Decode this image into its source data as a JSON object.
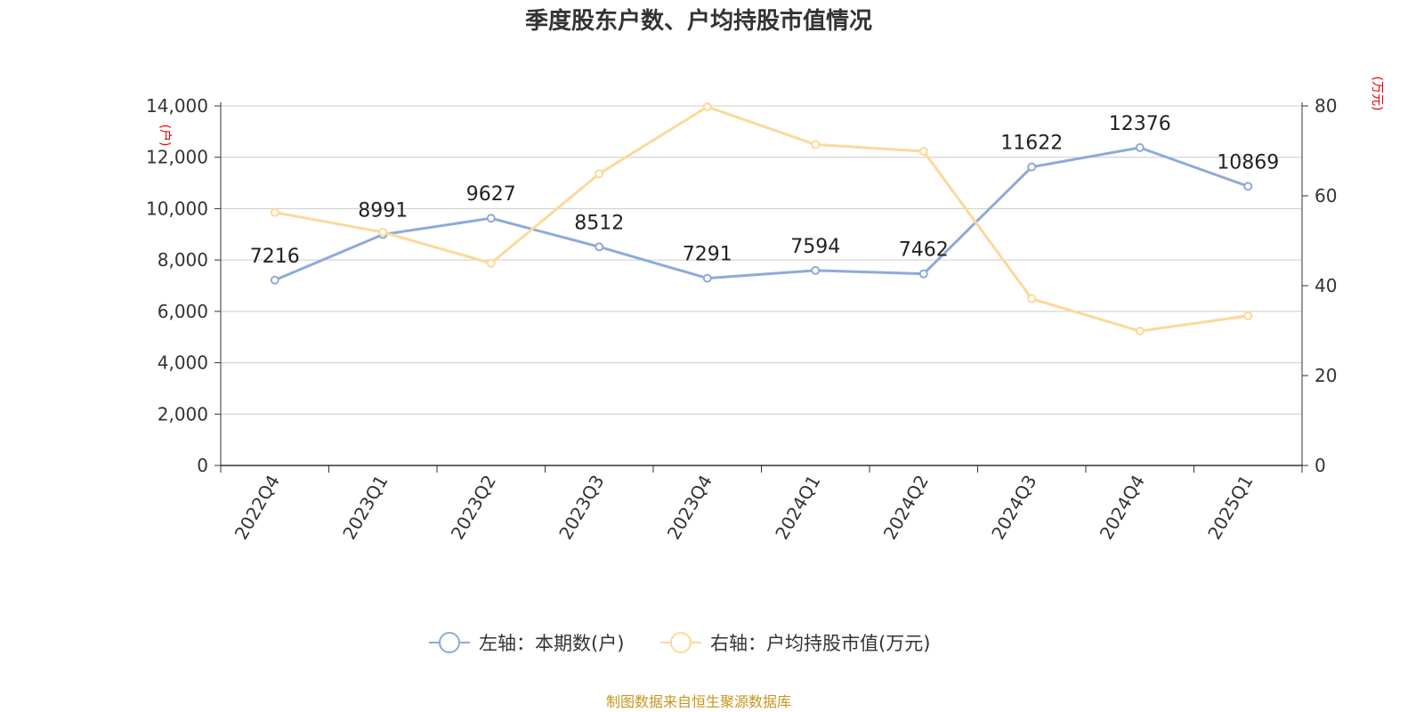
{
  "chart_data": {
    "type": "line",
    "title": "季度股东户数、户均持股市值情况",
    "categories": [
      "2022Q4",
      "2023Q1",
      "2023Q2",
      "2023Q3",
      "2023Q4",
      "2024Q1",
      "2024Q2",
      "2024Q3",
      "2024Q4",
      "2025Q1"
    ],
    "left_axis": {
      "unit": "(户)",
      "range": [
        0,
        14000
      ],
      "ticks": [
        "0",
        "2,000",
        "4,000",
        "6,000",
        "8,000",
        "10,000",
        "12,000",
        "14,000"
      ]
    },
    "right_axis": {
      "unit": "(万元)",
      "range": [
        0,
        80
      ],
      "ticks": [
        "0",
        "20",
        "40",
        "60",
        "80"
      ]
    },
    "series": [
      {
        "name": "左轴：本期数(户)",
        "axis": "left",
        "color": "#8eaad8",
        "values": [
          7216,
          8991,
          9627,
          8512,
          7291,
          7594,
          7462,
          11622,
          12376,
          10869
        ],
        "labels": [
          "7216",
          "8991",
          "9627",
          "8512",
          "7291",
          "7594",
          "7462",
          "11622",
          "12376",
          "10869"
        ]
      },
      {
        "name": "右轴：户均持股市值(万元)",
        "axis": "right",
        "color": "#fdd89a",
        "values": [
          56.3,
          51.9,
          45.0,
          64.9,
          79.8,
          71.4,
          69.9,
          37.1,
          29.9,
          33.3
        ]
      }
    ],
    "grid": true,
    "legend_position": "bottom-center"
  },
  "source": "制图数据来自恒生聚源数据库"
}
